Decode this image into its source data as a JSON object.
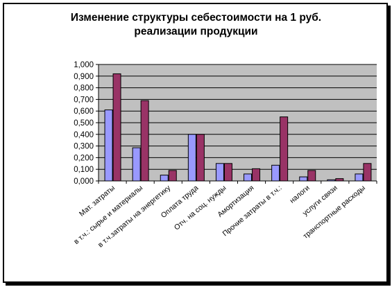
{
  "chart_data": {
    "type": "bar",
    "title": "Изменение структуры себестоимости на 1 руб.\nреализации продукции",
    "xlabel": "",
    "ylabel": "",
    "categories": [
      "Мат. затраты",
      "в т.ч.: сырье и материалы",
      "в т.ч.затраты на энергетику",
      "Оплата труда",
      "Отч. на соц. нужды",
      "Амортизация",
      "Прочие затраты в т.ч.:",
      "налоги",
      "услуги связи",
      "транспортные расходы"
    ],
    "series": [
      {
        "values": [
          0.61,
          0.285,
          0.05,
          0.4,
          0.15,
          0.06,
          0.135,
          0.035,
          0.01,
          0.06
        ]
      },
      {
        "values": [
          0.92,
          0.69,
          0.09,
          0.4,
          0.15,
          0.105,
          0.55,
          0.09,
          0.02,
          0.15
        ]
      }
    ],
    "ylim": [
      0,
      1.0
    ],
    "yticks": [
      "0,000",
      "0,100",
      "0,200",
      "0,300",
      "0,400",
      "0,500",
      "0,600",
      "0,700",
      "0,800",
      "0,900",
      "1,000"
    ],
    "grid": true,
    "legend": "none",
    "colors": {
      "series1": "#9999FF",
      "series2": "#993366",
      "plot_background": "#C0C0C0",
      "frame": "#000000"
    }
  }
}
